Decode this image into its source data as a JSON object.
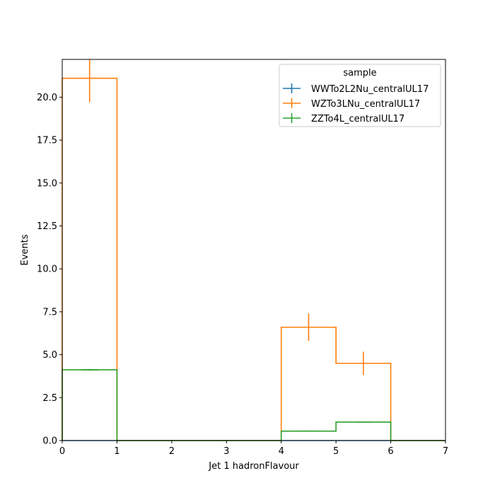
{
  "chart_data": {
    "type": "histogram",
    "xlabel": "Jet 1 hadronFlavour",
    "ylabel": "Events",
    "xlim": [
      0,
      7
    ],
    "ylim": [
      0,
      22.2
    ],
    "xticks": [
      0,
      1,
      2,
      3,
      4,
      5,
      6,
      7
    ],
    "yticks": [
      0.0,
      2.5,
      5.0,
      7.5,
      10.0,
      12.5,
      15.0,
      17.5,
      20.0
    ],
    "bin_edges": [
      0,
      1,
      2,
      3,
      4,
      5,
      6,
      7
    ],
    "grid": false,
    "legend": {
      "title": "sample",
      "placement": "top-right"
    },
    "series": [
      {
        "name": "WWTo2L2Nu_centralUL17",
        "color": "#1f77b4",
        "values": [
          0,
          0,
          0,
          0,
          0,
          0,
          0
        ],
        "errors": [
          0,
          0,
          0,
          0,
          0,
          0,
          0
        ]
      },
      {
        "name": "WZTo3LNu_centralUL17",
        "color": "#ff7f0e",
        "values": [
          21.1,
          0,
          0,
          0,
          6.6,
          4.5,
          0
        ],
        "errors": [
          1.4,
          0,
          0,
          0,
          0.8,
          0.68,
          0
        ]
      },
      {
        "name": "ZZTo4L_centralUL17",
        "color": "#2ca02c",
        "values": [
          4.12,
          0,
          0,
          0,
          0.55,
          1.08,
          0
        ],
        "errors": [
          0.05,
          0,
          0,
          0,
          0.02,
          0.03,
          0
        ]
      }
    ]
  }
}
